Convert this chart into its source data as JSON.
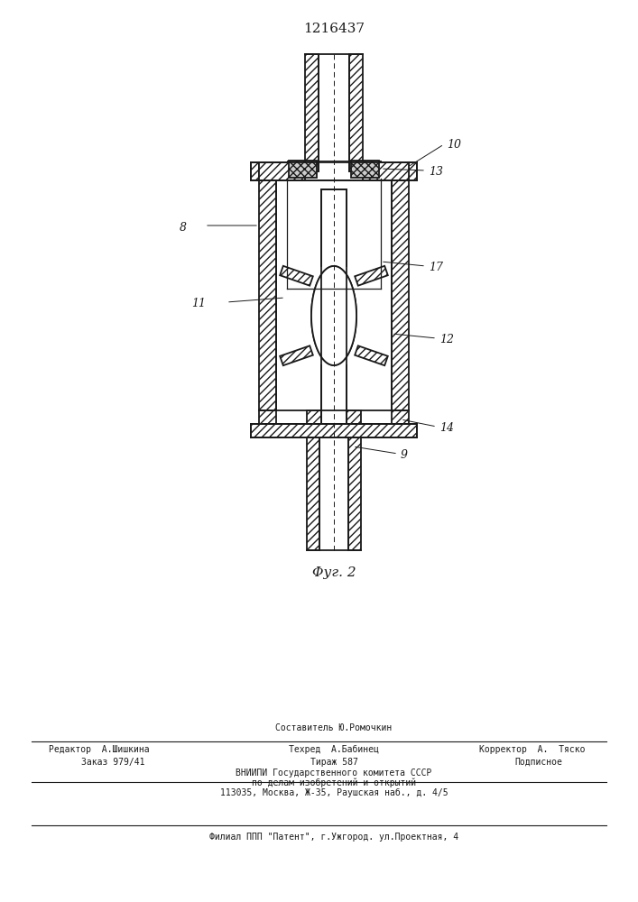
{
  "patent_number": "1216437",
  "figure_label": "Φуг. 2",
  "background_color": "#ffffff",
  "line_color": "#1a1a1a",
  "footer_lines": [
    "Составитель Ю.Ромочкин",
    "Редактор  А.Шишкина",
    "Техред  А.Бабинец",
    "Корректор  А.  Тяско",
    "Заказ 979/41",
    "Тираж 587",
    "Подписное",
    "ВНИИПИ Государственного комитета СССР",
    "по делам изобретений и открытий",
    "113035, Москва, Ж-35, Раушская наб., д. 4/5",
    "Филиал ППП \"Патент\", г.Ужгород. ул.Проектная, 4"
  ]
}
